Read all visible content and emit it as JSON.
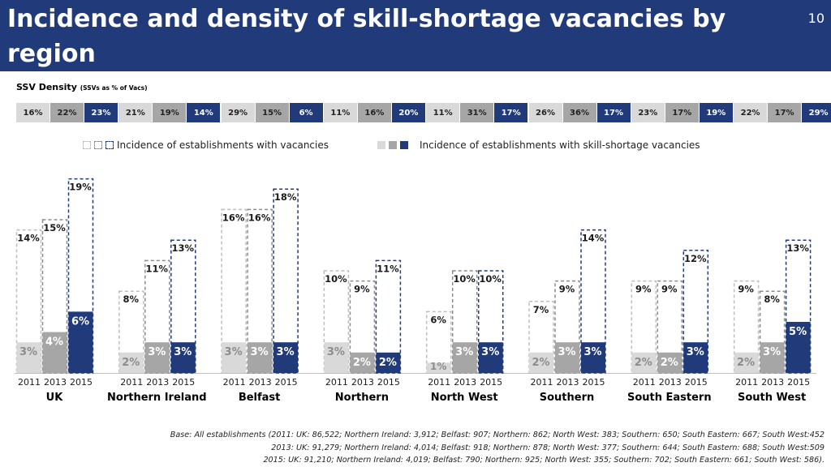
{
  "title": "Incidence and density of skill-shortage vacancies by region",
  "page_number": "10",
  "density": {
    "heading": "SSV Density",
    "subheading": "(SSVs as % of Vacs)",
    "colors": [
      "#d9d9d9",
      "#a6a6a6",
      "#213a7a"
    ],
    "groups": [
      [
        "16%",
        "22%",
        "23%"
      ],
      [
        "21%",
        "19%",
        "14%"
      ],
      [
        "29%",
        "15%",
        "6%"
      ],
      [
        "11%",
        "16%",
        "20%"
      ],
      [
        "11%",
        "31%",
        "17%"
      ],
      [
        "26%",
        "36%",
        "17%"
      ],
      [
        "23%",
        "17%",
        "19%"
      ],
      [
        "22%",
        "17%",
        "29%"
      ]
    ]
  },
  "legend": {
    "vacancies_label": "Incidence of establishments with vacancies",
    "ssv_label": "Incidence of establishments with skill-shortage vacancies"
  },
  "chart_data": {
    "type": "bar",
    "years": [
      "2011",
      "2013",
      "2015"
    ],
    "year_colors": [
      "#d9d9d9",
      "#a6a6a6",
      "#213a7a"
    ],
    "regions": [
      {
        "name": "UK",
        "vacancies": [
          14,
          15,
          19
        ],
        "ssv": [
          3,
          4,
          6
        ]
      },
      {
        "name": "Northern Ireland",
        "vacancies": [
          8,
          11,
          13
        ],
        "ssv": [
          2,
          3,
          3
        ]
      },
      {
        "name": "Belfast",
        "vacancies": [
          16,
          16,
          18
        ],
        "ssv": [
          3,
          3,
          3
        ]
      },
      {
        "name": "Northern",
        "vacancies": [
          10,
          9,
          11
        ],
        "ssv": [
          3,
          2,
          2
        ]
      },
      {
        "name": "North West",
        "vacancies": [
          6,
          10,
          10
        ],
        "ssv": [
          1,
          3,
          3
        ]
      },
      {
        "name": "Southern",
        "vacancies": [
          7,
          9,
          14
        ],
        "ssv": [
          2,
          3,
          3
        ]
      },
      {
        "name": "South Eastern",
        "vacancies": [
          9,
          9,
          12
        ],
        "ssv": [
          2,
          2,
          3
        ]
      },
      {
        "name": "South West",
        "vacancies": [
          9,
          8,
          13
        ],
        "ssv": [
          2,
          3,
          5
        ]
      }
    ],
    "value_suffix": "%",
    "ylim": [
      0,
      20
    ]
  },
  "footnote": [
    "Base: All establishments (2011: UK: 86,522; Northern Ireland: 3,912; Belfast: 907; Northern: 862; North West: 383; Southern: 650; South Eastern: 667; South West:452",
    "2013: UK: 91,279; Northern Ireland: 4,014; Belfast: 918; Northern: 878; North West: 377; Southern: 644; South Eastern: 688; South West:509",
    "2015: UK: 91,210;  Northern Ireland: 4,019; Belfast: 790; Northern: 925; North West: 355; Southern: 702; South Eastern: 661; South West: 586)."
  ]
}
